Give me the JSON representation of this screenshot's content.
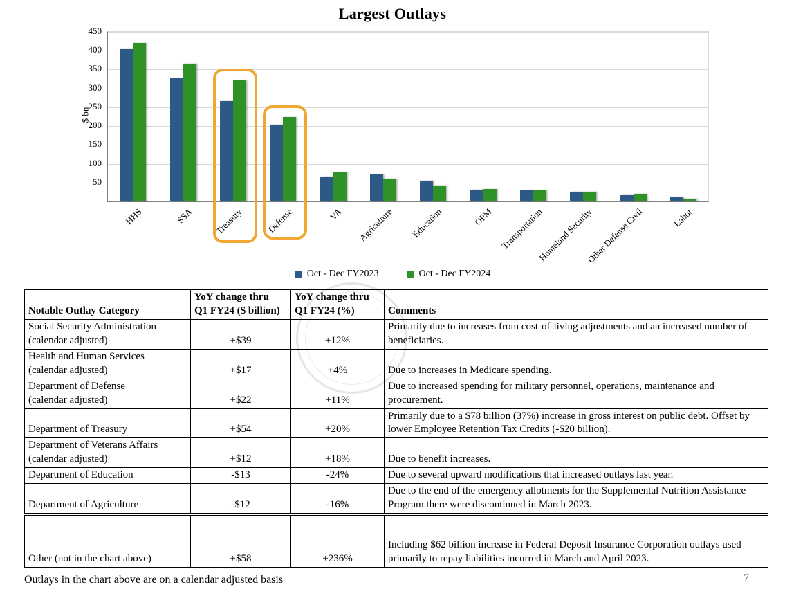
{
  "page": {
    "footnote": "Outlays in the chart above are on a calendar adjusted basis",
    "page_number": "7"
  },
  "chart_data": {
    "type": "bar",
    "title": "Largest Outlays",
    "ylabel": "$ bn",
    "ylim": [
      0,
      450
    ],
    "ytick_step": 50,
    "grid": true,
    "legend_position": "bottom",
    "categories": [
      "HHS",
      "SSA",
      "Treasury",
      "Defense",
      "VA",
      "Agriculture",
      "Education",
      "OPM",
      "Transportation",
      "Homeland Security",
      "Other Defense Civil",
      "Labor"
    ],
    "series": [
      {
        "name": "Oct - Dec FY2023",
        "color": "#2d5986",
        "values": [
          405,
          327,
          267,
          203,
          66,
          72,
          55,
          31,
          29,
          26,
          19,
          11
        ]
      },
      {
        "name": "Oct - Dec FY2024",
        "color": "#2f9227",
        "values": [
          421,
          365,
          321,
          225,
          78,
          60,
          42,
          34,
          30,
          26,
          21,
          8
        ]
      }
    ],
    "highlighted_categories": [
      "Treasury",
      "Defense"
    ],
    "highlight_color": "#f0a632"
  },
  "table": {
    "headers": {
      "category": "Notable Outlay Category",
      "dollar_line1": "YoY change thru",
      "dollar_line2": "Q1 FY24 ($ billion)",
      "pct_line1": "YoY change thru",
      "pct_line2": "Q1 FY24 (%)",
      "comments": "Comments"
    },
    "rows": [
      {
        "category": "Social Security Administration\n(calendar adjusted)",
        "dollar": "+$39",
        "pct": "+12%",
        "comment": "Primarily due to increases from cost-of-living adjustments and an increased number of beneficiaries."
      },
      {
        "category": "Health and Human Services\n(calendar adjusted)",
        "dollar": "+$17",
        "pct": "+4%",
        "comment": "Due to increases in Medicare spending."
      },
      {
        "category": "Department of Defense\n(calendar adjusted)",
        "dollar": "+$22",
        "pct": "+11%",
        "comment": "Due to increased spending for military personnel, operations, maintenance and procurement."
      },
      {
        "category": "Department of Treasury",
        "dollar": "+$54",
        "pct": "+20%",
        "comment": "Primarily due to a $78 billion (37%) increase in gross interest on public debt. Offset by lower Employee Retention Tax Credits (-$20 billion)."
      },
      {
        "category": "Department of Veterans Affairs\n(calendar adjusted)",
        "dollar": "+$12",
        "pct": "+18%",
        "comment": "Due to benefit increases."
      },
      {
        "category": "Department of Education",
        "dollar": "-$13",
        "pct": "-24%",
        "comment": "Due to several upward modifications that increased outlays last year."
      },
      {
        "category": "Department of Agriculture",
        "dollar": "-$12",
        "pct": "-16%",
        "comment": "Due to the end of the emergency allotments for the Supplemental Nutrition Assistance Program there were discontinued in March 2023."
      },
      {
        "category": "Other (not in the chart above)",
        "dollar": "+$58",
        "pct": "+236%",
        "comment": "Including $62 billion increase in Federal Deposit Insurance Corporation outlays used primarily to repay liabilities incurred in March and April 2023.",
        "separator": true,
        "tall": true
      }
    ]
  }
}
